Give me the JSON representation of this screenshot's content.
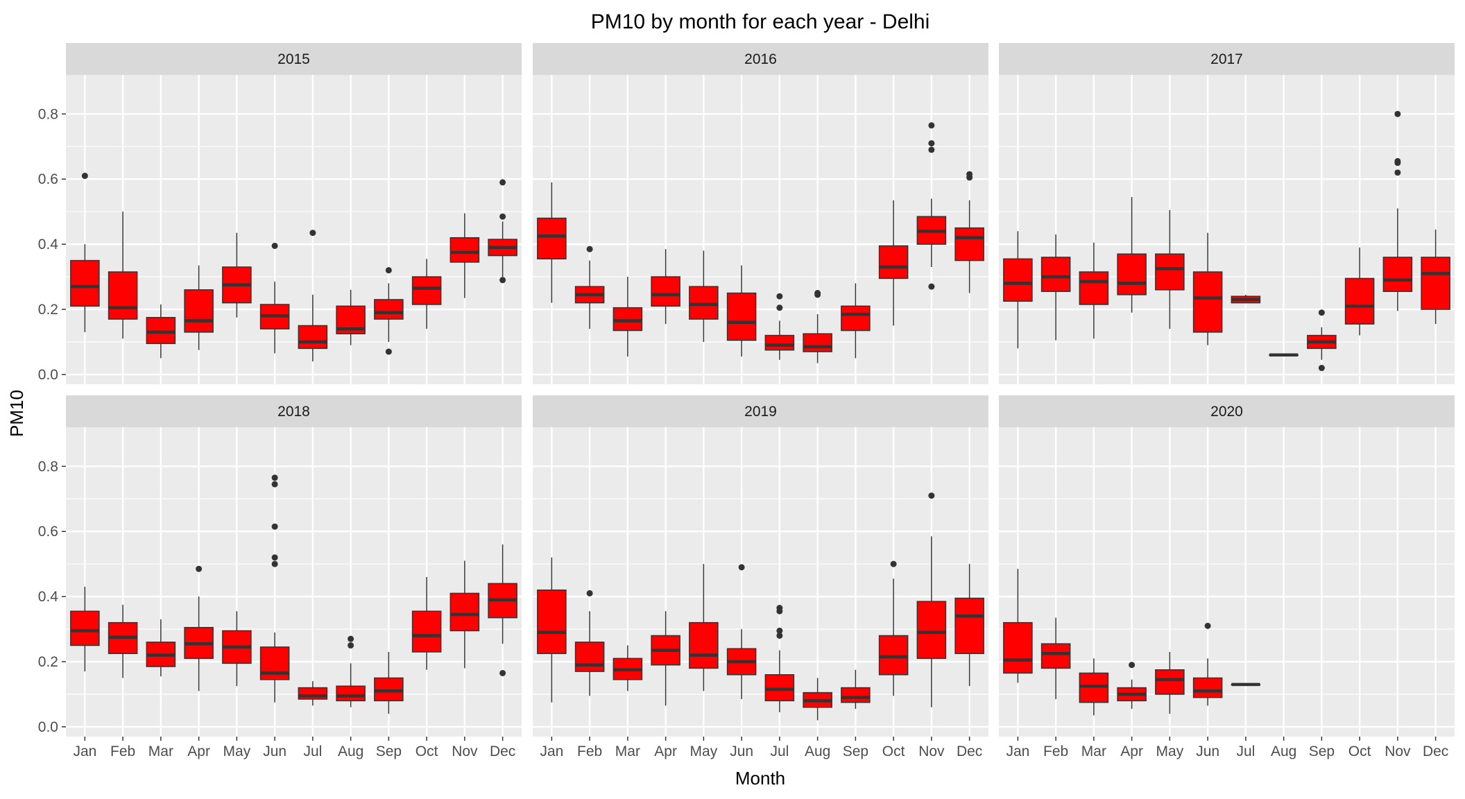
{
  "chart_data": {
    "type": "boxplot",
    "title": "PM10 by month for each year - Delhi",
    "xlabel": "Month",
    "ylabel": "PM10",
    "ylim": [
      -0.03,
      0.92
    ],
    "y_ticks": [
      0.0,
      0.2,
      0.4,
      0.6,
      0.8
    ],
    "y_tick_labels": [
      "0.0",
      "0.2",
      "0.4",
      "0.6",
      "0.8"
    ],
    "categories": [
      "Jan",
      "Feb",
      "Mar",
      "Apr",
      "May",
      "Jun",
      "Jul",
      "Aug",
      "Sep",
      "Oct",
      "Nov",
      "Dec"
    ],
    "grid": true,
    "box_fill": "#ff0000",
    "box_line": "#333333",
    "panel_bg": "#ebebeb",
    "strip_bg": "#d9d9d9",
    "panels": [
      {
        "year": "2015",
        "boxes": [
          {
            "month": "Jan",
            "lo": 0.13,
            "q1": 0.21,
            "med": 0.27,
            "q3": 0.35,
            "hi": 0.4,
            "out": [
              0.61
            ]
          },
          {
            "month": "Feb",
            "lo": 0.11,
            "q1": 0.17,
            "med": 0.205,
            "q3": 0.315,
            "hi": 0.5,
            "out": []
          },
          {
            "month": "Mar",
            "lo": 0.05,
            "q1": 0.095,
            "med": 0.13,
            "q3": 0.175,
            "hi": 0.215,
            "out": []
          },
          {
            "month": "Apr",
            "lo": 0.075,
            "q1": 0.13,
            "med": 0.165,
            "q3": 0.26,
            "hi": 0.335,
            "out": []
          },
          {
            "month": "May",
            "lo": 0.175,
            "q1": 0.22,
            "med": 0.275,
            "q3": 0.33,
            "hi": 0.435,
            "out": []
          },
          {
            "month": "Jun",
            "lo": 0.065,
            "q1": 0.14,
            "med": 0.18,
            "q3": 0.215,
            "hi": 0.285,
            "out": [
              0.395
            ]
          },
          {
            "month": "Jul",
            "lo": 0.04,
            "q1": 0.08,
            "med": 0.1,
            "q3": 0.15,
            "hi": 0.245,
            "out": [
              0.435
            ]
          },
          {
            "month": "Aug",
            "lo": 0.09,
            "q1": 0.125,
            "med": 0.14,
            "q3": 0.21,
            "hi": 0.26,
            "out": []
          },
          {
            "month": "Sep",
            "lo": 0.1,
            "q1": 0.17,
            "med": 0.19,
            "q3": 0.23,
            "hi": 0.28,
            "out": [
              0.07,
              0.32
            ]
          },
          {
            "month": "Oct",
            "lo": 0.14,
            "q1": 0.215,
            "med": 0.265,
            "q3": 0.3,
            "hi": 0.355,
            "out": []
          },
          {
            "month": "Nov",
            "lo": 0.235,
            "q1": 0.345,
            "med": 0.375,
            "q3": 0.42,
            "hi": 0.495,
            "out": []
          },
          {
            "month": "Dec",
            "lo": 0.3,
            "q1": 0.365,
            "med": 0.39,
            "q3": 0.415,
            "hi": 0.47,
            "out": [
              0.29,
              0.485,
              0.59
            ]
          }
        ]
      },
      {
        "year": "2016",
        "boxes": [
          {
            "month": "Jan",
            "lo": 0.22,
            "q1": 0.355,
            "med": 0.425,
            "q3": 0.48,
            "hi": 0.59,
            "out": []
          },
          {
            "month": "Feb",
            "lo": 0.14,
            "q1": 0.22,
            "med": 0.245,
            "q3": 0.27,
            "hi": 0.35,
            "out": [
              0.385
            ]
          },
          {
            "month": "Mar",
            "lo": 0.055,
            "q1": 0.135,
            "med": 0.165,
            "q3": 0.205,
            "hi": 0.3,
            "out": []
          },
          {
            "month": "Apr",
            "lo": 0.155,
            "q1": 0.21,
            "med": 0.245,
            "q3": 0.3,
            "hi": 0.385,
            "out": []
          },
          {
            "month": "May",
            "lo": 0.1,
            "q1": 0.17,
            "med": 0.215,
            "q3": 0.27,
            "hi": 0.38,
            "out": []
          },
          {
            "month": "Jun",
            "lo": 0.055,
            "q1": 0.105,
            "med": 0.16,
            "q3": 0.25,
            "hi": 0.335,
            "out": []
          },
          {
            "month": "Jul",
            "lo": 0.045,
            "q1": 0.075,
            "med": 0.09,
            "q3": 0.12,
            "hi": 0.165,
            "out": [
              0.205,
              0.24
            ]
          },
          {
            "month": "Aug",
            "lo": 0.035,
            "q1": 0.07,
            "med": 0.085,
            "q3": 0.125,
            "hi": 0.185,
            "out": [
              0.245,
              0.25
            ]
          },
          {
            "month": "Sep",
            "lo": 0.05,
            "q1": 0.135,
            "med": 0.185,
            "q3": 0.21,
            "hi": 0.28,
            "out": []
          },
          {
            "month": "Oct",
            "lo": 0.15,
            "q1": 0.295,
            "med": 0.33,
            "q3": 0.395,
            "hi": 0.535,
            "out": []
          },
          {
            "month": "Nov",
            "lo": 0.33,
            "q1": 0.4,
            "med": 0.44,
            "q3": 0.485,
            "hi": 0.54,
            "out": [
              0.27,
              0.69,
              0.71,
              0.765
            ]
          },
          {
            "month": "Dec",
            "lo": 0.25,
            "q1": 0.35,
            "med": 0.42,
            "q3": 0.45,
            "hi": 0.535,
            "out": [
              0.605,
              0.615
            ]
          }
        ]
      },
      {
        "year": "2017",
        "boxes": [
          {
            "month": "Jan",
            "lo": 0.08,
            "q1": 0.225,
            "med": 0.28,
            "q3": 0.355,
            "hi": 0.44,
            "out": []
          },
          {
            "month": "Feb",
            "lo": 0.105,
            "q1": 0.255,
            "med": 0.3,
            "q3": 0.36,
            "hi": 0.43,
            "out": []
          },
          {
            "month": "Mar",
            "lo": 0.11,
            "q1": 0.215,
            "med": 0.285,
            "q3": 0.315,
            "hi": 0.405,
            "out": []
          },
          {
            "month": "Apr",
            "lo": 0.19,
            "q1": 0.245,
            "med": 0.28,
            "q3": 0.37,
            "hi": 0.545,
            "out": []
          },
          {
            "month": "May",
            "lo": 0.14,
            "q1": 0.26,
            "med": 0.325,
            "q3": 0.37,
            "hi": 0.505,
            "out": []
          },
          {
            "month": "Jun",
            "lo": 0.09,
            "q1": 0.13,
            "med": 0.235,
            "q3": 0.315,
            "hi": 0.435,
            "out": []
          },
          {
            "month": "Jul",
            "lo": 0.22,
            "q1": 0.22,
            "med": 0.23,
            "q3": 0.24,
            "hi": 0.245,
            "out": []
          },
          {
            "month": "Aug",
            "lo": 0.06,
            "q1": 0.06,
            "med": 0.06,
            "q3": 0.06,
            "hi": 0.06,
            "out": []
          },
          {
            "month": "Sep",
            "lo": 0.045,
            "q1": 0.08,
            "med": 0.1,
            "q3": 0.12,
            "hi": 0.145,
            "out": [
              0.02,
              0.19
            ]
          },
          {
            "month": "Oct",
            "lo": 0.12,
            "q1": 0.155,
            "med": 0.21,
            "q3": 0.295,
            "hi": 0.39,
            "out": []
          },
          {
            "month": "Nov",
            "lo": 0.195,
            "q1": 0.255,
            "med": 0.29,
            "q3": 0.36,
            "hi": 0.51,
            "out": [
              0.62,
              0.65,
              0.655,
              0.8
            ]
          },
          {
            "month": "Dec",
            "lo": 0.155,
            "q1": 0.2,
            "med": 0.31,
            "q3": 0.36,
            "hi": 0.445,
            "out": []
          }
        ]
      },
      {
        "year": "2018",
        "boxes": [
          {
            "month": "Jan",
            "lo": 0.17,
            "q1": 0.25,
            "med": 0.295,
            "q3": 0.355,
            "hi": 0.43,
            "out": []
          },
          {
            "month": "Feb",
            "lo": 0.15,
            "q1": 0.225,
            "med": 0.275,
            "q3": 0.32,
            "hi": 0.375,
            "out": []
          },
          {
            "month": "Mar",
            "lo": 0.155,
            "q1": 0.185,
            "med": 0.22,
            "q3": 0.26,
            "hi": 0.33,
            "out": []
          },
          {
            "month": "Apr",
            "lo": 0.11,
            "q1": 0.21,
            "med": 0.255,
            "q3": 0.305,
            "hi": 0.4,
            "out": [
              0.485
            ]
          },
          {
            "month": "May",
            "lo": 0.125,
            "q1": 0.195,
            "med": 0.245,
            "q3": 0.295,
            "hi": 0.355,
            "out": []
          },
          {
            "month": "Jun",
            "lo": 0.075,
            "q1": 0.145,
            "med": 0.165,
            "q3": 0.245,
            "hi": 0.29,
            "out": [
              0.5,
              0.52,
              0.615,
              0.745,
              0.765
            ]
          },
          {
            "month": "Jul",
            "lo": 0.065,
            "q1": 0.085,
            "med": 0.095,
            "q3": 0.12,
            "hi": 0.14,
            "out": []
          },
          {
            "month": "Aug",
            "lo": 0.06,
            "q1": 0.08,
            "med": 0.095,
            "q3": 0.125,
            "hi": 0.195,
            "out": [
              0.25,
              0.27
            ]
          },
          {
            "month": "Sep",
            "lo": 0.04,
            "q1": 0.08,
            "med": 0.11,
            "q3": 0.15,
            "hi": 0.23,
            "out": []
          },
          {
            "month": "Oct",
            "lo": 0.175,
            "q1": 0.23,
            "med": 0.28,
            "q3": 0.355,
            "hi": 0.46,
            "out": []
          },
          {
            "month": "Nov",
            "lo": 0.18,
            "q1": 0.295,
            "med": 0.345,
            "q3": 0.41,
            "hi": 0.51,
            "out": []
          },
          {
            "month": "Dec",
            "lo": 0.255,
            "q1": 0.335,
            "med": 0.39,
            "q3": 0.44,
            "hi": 0.56,
            "out": [
              0.165
            ]
          }
        ]
      },
      {
        "year": "2019",
        "boxes": [
          {
            "month": "Jan",
            "lo": 0.075,
            "q1": 0.225,
            "med": 0.29,
            "q3": 0.42,
            "hi": 0.52,
            "out": []
          },
          {
            "month": "Feb",
            "lo": 0.095,
            "q1": 0.17,
            "med": 0.19,
            "q3": 0.26,
            "hi": 0.355,
            "out": [
              0.41
            ]
          },
          {
            "month": "Mar",
            "lo": 0.11,
            "q1": 0.145,
            "med": 0.175,
            "q3": 0.21,
            "hi": 0.25,
            "out": []
          },
          {
            "month": "Apr",
            "lo": 0.065,
            "q1": 0.19,
            "med": 0.235,
            "q3": 0.28,
            "hi": 0.355,
            "out": []
          },
          {
            "month": "May",
            "lo": 0.11,
            "q1": 0.18,
            "med": 0.22,
            "q3": 0.32,
            "hi": 0.5,
            "out": []
          },
          {
            "month": "Jun",
            "lo": 0.085,
            "q1": 0.16,
            "med": 0.2,
            "q3": 0.24,
            "hi": 0.3,
            "out": [
              0.49
            ]
          },
          {
            "month": "Jul",
            "lo": 0.045,
            "q1": 0.08,
            "med": 0.115,
            "q3": 0.16,
            "hi": 0.235,
            "out": [
              0.28,
              0.295,
              0.355,
              0.365
            ]
          },
          {
            "month": "Aug",
            "lo": 0.02,
            "q1": 0.06,
            "med": 0.08,
            "q3": 0.105,
            "hi": 0.15,
            "out": []
          },
          {
            "month": "Sep",
            "lo": 0.055,
            "q1": 0.075,
            "med": 0.09,
            "q3": 0.12,
            "hi": 0.175,
            "out": []
          },
          {
            "month": "Oct",
            "lo": 0.095,
            "q1": 0.16,
            "med": 0.215,
            "q3": 0.28,
            "hi": 0.455,
            "out": [
              0.5
            ]
          },
          {
            "month": "Nov",
            "lo": 0.06,
            "q1": 0.21,
            "med": 0.29,
            "q3": 0.385,
            "hi": 0.585,
            "out": [
              0.71
            ]
          },
          {
            "month": "Dec",
            "lo": 0.125,
            "q1": 0.225,
            "med": 0.34,
            "q3": 0.395,
            "hi": 0.5,
            "out": []
          }
        ]
      },
      {
        "year": "2020",
        "boxes": [
          {
            "month": "Jan",
            "lo": 0.135,
            "q1": 0.165,
            "med": 0.205,
            "q3": 0.32,
            "hi": 0.485,
            "out": []
          },
          {
            "month": "Feb",
            "lo": 0.085,
            "q1": 0.18,
            "med": 0.225,
            "q3": 0.255,
            "hi": 0.335,
            "out": []
          },
          {
            "month": "Mar",
            "lo": 0.035,
            "q1": 0.075,
            "med": 0.125,
            "q3": 0.165,
            "hi": 0.21,
            "out": []
          },
          {
            "month": "Apr",
            "lo": 0.055,
            "q1": 0.08,
            "med": 0.1,
            "q3": 0.12,
            "hi": 0.145,
            "out": [
              0.19
            ]
          },
          {
            "month": "May",
            "lo": 0.04,
            "q1": 0.1,
            "med": 0.145,
            "q3": 0.175,
            "hi": 0.23,
            "out": []
          },
          {
            "month": "Jun",
            "lo": 0.065,
            "q1": 0.09,
            "med": 0.11,
            "q3": 0.15,
            "hi": 0.21,
            "out": [
              0.31
            ]
          },
          {
            "month": "Jul",
            "lo": 0.13,
            "q1": 0.13,
            "med": 0.13,
            "q3": 0.13,
            "hi": 0.13,
            "out": []
          }
        ]
      }
    ]
  }
}
